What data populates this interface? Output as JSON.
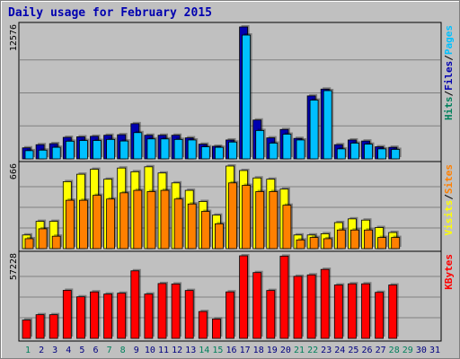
{
  "title": "Daily usage for February 2015",
  "colors": {
    "hits": "#00805c",
    "files": "#0000b0",
    "pages": "#00c0ff",
    "visits": "#ffff00",
    "sites": "#ff8000",
    "kbytes": "#ff0000",
    "weekend_label": "#00805c",
    "day_label": "#000080",
    "max_label": "#000000",
    "separator": "#000000"
  },
  "chart_data": [
    {
      "type": "bar",
      "panel": "hits-files-pages",
      "categories": [
        "1",
        "2",
        "3",
        "4",
        "5",
        "6",
        "7",
        "8",
        "9",
        "10",
        "11",
        "12",
        "13",
        "14",
        "15",
        "16",
        "17",
        "18",
        "19",
        "20",
        "21",
        "22",
        "23",
        "24",
        "25",
        "26",
        "27",
        "28",
        "29",
        "30",
        "31"
      ],
      "weekend_days": [
        "1",
        "7",
        "8",
        "14",
        "15",
        "21",
        "22",
        "28",
        "29"
      ],
      "ymax_label": "12576",
      "ylim": [
        0,
        12576
      ],
      "legend": [
        {
          "text": "Hits",
          "color_key": "hits"
        },
        {
          "text": "/",
          "color_key": "separator"
        },
        {
          "text": "Files",
          "color_key": "files"
        },
        {
          "text": "/",
          "color_key": "separator"
        },
        {
          "text": "Pages",
          "color_key": "pages"
        }
      ],
      "series": [
        {
          "name": "Files",
          "color_key": "files",
          "values": [
            1050,
            1350,
            1450,
            2050,
            2100,
            2150,
            2250,
            2300,
            3350,
            2250,
            2250,
            2250,
            2000,
            1400,
            1200,
            1800,
            12576,
            3700,
            2000,
            2800,
            1950,
            6000,
            6650,
            1350,
            1800,
            1700,
            1150,
            1100,
            0,
            0,
            0
          ]
        },
        {
          "name": "Pages",
          "color_key": "pages",
          "values": [
            780,
            830,
            1100,
            1680,
            1750,
            1750,
            1850,
            1700,
            2500,
            1900,
            1900,
            1850,
            1800,
            1150,
            1100,
            1600,
            11800,
            2700,
            1500,
            2350,
            1800,
            5600,
            6500,
            950,
            1500,
            1400,
            950,
            900,
            0,
            0,
            0
          ]
        }
      ]
    },
    {
      "type": "bar",
      "panel": "visits-sites",
      "categories": [
        "1",
        "2",
        "3",
        "4",
        "5",
        "6",
        "7",
        "8",
        "9",
        "10",
        "11",
        "12",
        "13",
        "14",
        "15",
        "16",
        "17",
        "18",
        "19",
        "20",
        "21",
        "22",
        "23",
        "24",
        "25",
        "26",
        "27",
        "28",
        "29",
        "30",
        "31"
      ],
      "ymax_label": "666",
      "ylim": [
        0,
        666
      ],
      "legend": [
        {
          "text": "Visits",
          "color_key": "visits"
        },
        {
          "text": "/",
          "color_key": "separator"
        },
        {
          "text": "Sites",
          "color_key": "sites"
        }
      ],
      "series": [
        {
          "name": "Visits",
          "color_key": "visits",
          "values": [
            110,
            220,
            220,
            540,
            600,
            640,
            560,
            650,
            620,
            660,
            610,
            530,
            470,
            380,
            270,
            666,
            630,
            570,
            560,
            480,
            110,
            110,
            120,
            210,
            240,
            230,
            170,
            130,
            0,
            0,
            0
          ]
        },
        {
          "name": "Sites",
          "color_key": "sites",
          "values": [
            80,
            160,
            100,
            390,
            390,
            430,
            400,
            450,
            470,
            460,
            470,
            400,
            360,
            300,
            200,
            530,
            510,
            460,
            460,
            350,
            70,
            90,
            80,
            150,
            150,
            150,
            90,
            90,
            0,
            0,
            0
          ]
        }
      ]
    },
    {
      "type": "bar",
      "panel": "kbytes",
      "categories": [
        "1",
        "2",
        "3",
        "4",
        "5",
        "6",
        "7",
        "8",
        "9",
        "10",
        "11",
        "12",
        "13",
        "14",
        "15",
        "16",
        "17",
        "18",
        "19",
        "20",
        "21",
        "22",
        "23",
        "24",
        "25",
        "26",
        "27",
        "28",
        "29",
        "30",
        "31"
      ],
      "ymax_label": "57228",
      "ylim": [
        0,
        57228
      ],
      "legend": [
        {
          "text": "KBytes",
          "color_key": "kbytes"
        }
      ],
      "series": [
        {
          "name": "KBytes",
          "color_key": "kbytes",
          "values": [
            12700,
            16400,
            16400,
            33300,
            28800,
            32200,
            30700,
            31300,
            46800,
            30700,
            38000,
            37700,
            33200,
            18600,
            13400,
            32200,
            57228,
            45600,
            33200,
            57000,
            43000,
            44000,
            47800,
            37000,
            37800,
            37800,
            31900,
            37000,
            0,
            0,
            0
          ]
        }
      ]
    }
  ]
}
